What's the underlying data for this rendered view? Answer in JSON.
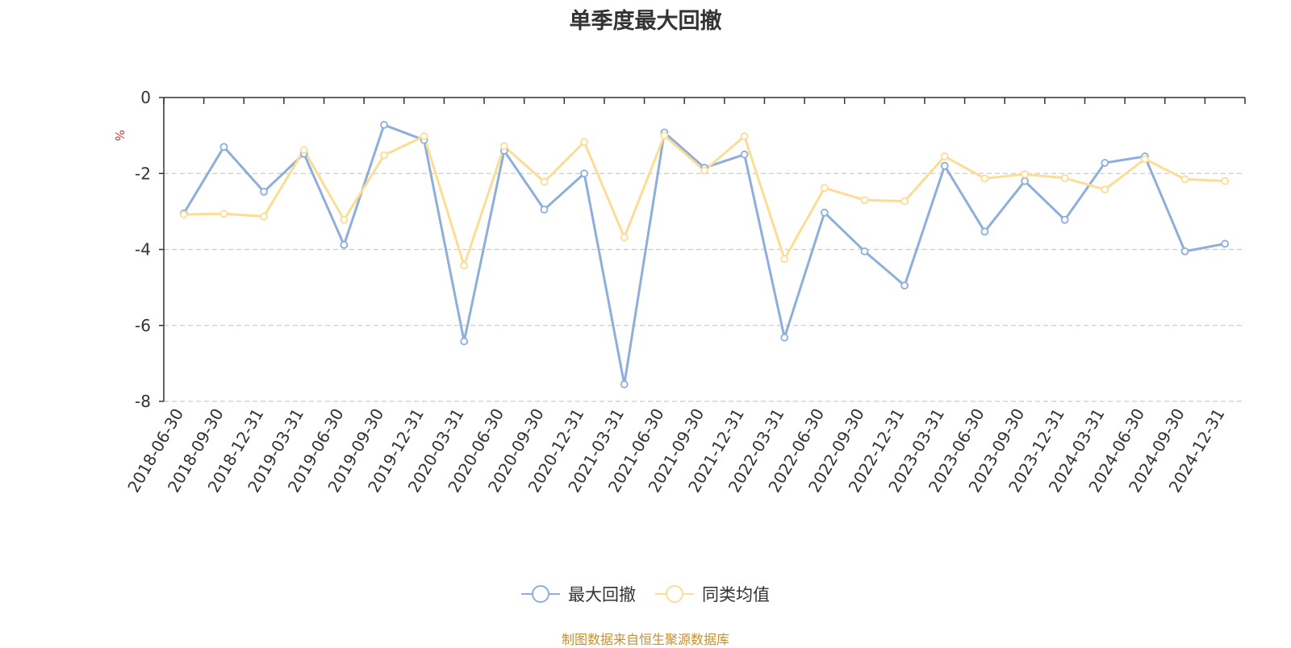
{
  "chart_data": {
    "type": "line",
    "title": "单季度最大回撤",
    "ylabel": "%",
    "xlabel": "",
    "ylim": [
      -8,
      0
    ],
    "yticks": [
      0,
      -2,
      -4,
      -6,
      -8
    ],
    "categories": [
      "2018-06-30",
      "2018-09-30",
      "2018-12-31",
      "2019-03-31",
      "2019-06-30",
      "2019-09-30",
      "2019-12-31",
      "2020-03-31",
      "2020-06-30",
      "2020-09-30",
      "2020-12-31",
      "2021-03-31",
      "2021-06-30",
      "2021-09-30",
      "2021-12-31",
      "2022-03-31",
      "2022-06-30",
      "2022-09-30",
      "2022-12-31",
      "2023-03-31",
      "2023-06-30",
      "2023-09-30",
      "2023-12-31",
      "2024-03-31",
      "2024-06-30",
      "2024-09-30",
      "2024-12-31"
    ],
    "series": [
      {
        "name": "最大回撤",
        "color": "#8eaedb",
        "values": [
          -3.05,
          -1.3,
          -2.48,
          -1.48,
          -3.88,
          -0.72,
          -1.12,
          -6.42,
          -1.4,
          -2.95,
          -2.0,
          -7.55,
          -0.92,
          -1.85,
          -1.5,
          -6.32,
          -3.03,
          -4.05,
          -4.95,
          -1.8,
          -3.53,
          -2.2,
          -3.22,
          -1.72,
          -1.55,
          -4.05,
          -3.85
        ]
      },
      {
        "name": "同类均值",
        "color": "#fddc95",
        "values": [
          -3.08,
          -3.06,
          -3.13,
          -1.38,
          -3.22,
          -1.52,
          -1.02,
          -4.42,
          -1.28,
          -2.22,
          -1.17,
          -3.68,
          -1.0,
          -1.92,
          -1.02,
          -4.25,
          -2.38,
          -2.7,
          -2.73,
          -1.55,
          -2.13,
          -2.02,
          -2.12,
          -2.42,
          -1.62,
          -2.15,
          -2.2
        ]
      }
    ],
    "grid": true,
    "legend_position": "bottom-center"
  },
  "source": "制图数据来自恒生聚源数据库"
}
